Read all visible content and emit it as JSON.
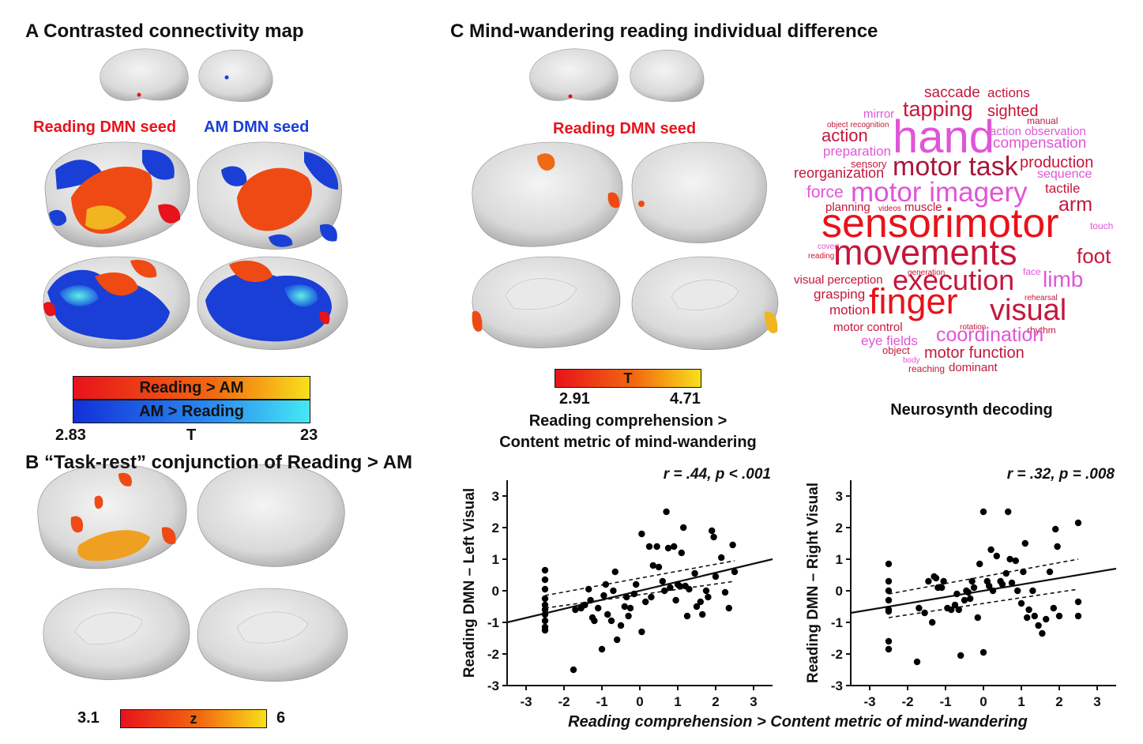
{
  "panelA": {
    "title": "A Contrasted connectivity map",
    "seed_left": "Reading DMN seed",
    "seed_right": "AM DMN seed",
    "bar1_label": "Reading > AM",
    "bar2_label": "AM > Reading",
    "scale_min": "2.83",
    "scale_mid": "T",
    "scale_max": "23"
  },
  "panelB": {
    "title": "B “Task-rest” conjunction of Reading > AM",
    "scale_min": "3.1",
    "scale_mid": "z",
    "scale_max": "6"
  },
  "panelC": {
    "title": "C Mind-wandering reading individual difference",
    "seed": "Reading DMN seed",
    "scale_mid": "T",
    "scale_min": "2.91",
    "scale_max": "4.71",
    "contrast_line1": "Reading comprehension >",
    "contrast_line2": "Content metric of mind-wandering",
    "decoding_label": "Neurosynth decoding",
    "shared_xlabel": "Reading comprehension > Content metric of mind-wandering"
  },
  "colors": {
    "red": "#e8121b",
    "blue": "#1a3fd6",
    "wc_dark": "#c4173a",
    "wc_mid": "#d43a8a",
    "wc_pink": "#e055d8"
  },
  "wordcloud": [
    {
      "text": "saccade",
      "color": "#c4173a"
    },
    {
      "text": "actions",
      "color": "#c4173a"
    },
    {
      "text": "tapping",
      "color": "#c4173a"
    },
    {
      "text": "sighted",
      "color": "#c4173a"
    },
    {
      "text": "mirror",
      "color": "#e055d8"
    },
    {
      "text": "manual",
      "color": "#c4173a"
    },
    {
      "text": "object recognition",
      "color": "#c4173a"
    },
    {
      "text": "hand",
      "color": "#e055d8"
    },
    {
      "text": "action observation",
      "color": "#e055d8"
    },
    {
      "text": "action",
      "color": "#c4173a"
    },
    {
      "text": "compensation",
      "color": "#e055d8"
    },
    {
      "text": "preparation",
      "color": "#e055d8"
    },
    {
      "text": "sensory",
      "color": "#c4173a"
    },
    {
      "text": "motor task",
      "color": "#a8173a"
    },
    {
      "text": "production",
      "color": "#c4173a"
    },
    {
      "text": "reorganization",
      "color": "#c4173a"
    },
    {
      "text": "sequence",
      "color": "#e055d8"
    },
    {
      "text": "force",
      "color": "#e055d8"
    },
    {
      "text": "motor imagery",
      "color": "#e055d8"
    },
    {
      "text": "tactile",
      "color": "#c4173a"
    },
    {
      "text": "planning",
      "color": "#c4173a"
    },
    {
      "text": "videos",
      "color": "#c4173a"
    },
    {
      "text": "muscle",
      "color": "#c4173a"
    },
    {
      "text": "arm",
      "color": "#c4173a"
    },
    {
      "text": "sensorimotor",
      "color": "#e8121b"
    },
    {
      "text": "touch",
      "color": "#e055d8"
    },
    {
      "text": "covert",
      "color": "#e055d8"
    },
    {
      "text": "reading",
      "color": "#c4173a"
    },
    {
      "text": "movements",
      "color": "#c4173a"
    },
    {
      "text": "foot",
      "color": "#c4173a"
    },
    {
      "text": "generation",
      "color": "#c4173a"
    },
    {
      "text": "face",
      "color": "#e055d8"
    },
    {
      "text": "visual perception",
      "color": "#c4173a"
    },
    {
      "text": "execution",
      "color": "#c4173a"
    },
    {
      "text": "limb",
      "color": "#e055d8"
    },
    {
      "text": "grasping",
      "color": "#c4173a"
    },
    {
      "text": "rehearsal",
      "color": "#c4173a"
    },
    {
      "text": "motion",
      "color": "#c4173a"
    },
    {
      "text": "finger",
      "color": "#e8121b"
    },
    {
      "text": "visual",
      "color": "#c4173a"
    },
    {
      "text": "motor control",
      "color": "#c4173a"
    },
    {
      "text": "rotation",
      "color": "#c4173a"
    },
    {
      "text": "rhythm",
      "color": "#c4173a"
    },
    {
      "text": "eye fields",
      "color": "#e055d8"
    },
    {
      "text": "coordination",
      "color": "#e055d8"
    },
    {
      "text": "object",
      "color": "#c4173a"
    },
    {
      "text": "body",
      "color": "#e055d8"
    },
    {
      "text": "motor function",
      "color": "#c4173a"
    },
    {
      "text": "reaching",
      "color": "#c4173a"
    },
    {
      "text": "dominant",
      "color": "#c4173a"
    }
  ],
  "chart_data": [
    {
      "type": "scatter",
      "title": "r = .44, p < .001",
      "xlabel": "",
      "ylabel": "Reading DMN – Left Visual",
      "xlim": [
        -3.5,
        3.5
      ],
      "ylim": [
        -3,
        3.5
      ],
      "xticks": [
        "-3",
        "-2",
        "-1",
        "0",
        "1",
        "2",
        "3"
      ],
      "yticks": [
        "-3",
        "-2",
        "-1",
        "0",
        "1",
        "2",
        "3"
      ],
      "points": [
        [
          -2.5,
          0.65
        ],
        [
          -2.5,
          0.35
        ],
        [
          -2.5,
          0.05
        ],
        [
          -2.5,
          -0.25
        ],
        [
          -2.5,
          -0.45
        ],
        [
          -2.5,
          -0.6
        ],
        [
          -2.5,
          -0.75
        ],
        [
          -2.5,
          -0.95
        ],
        [
          -2.5,
          -1.15
        ],
        [
          -2.5,
          -1.25
        ],
        [
          -1.75,
          -2.5
        ],
        [
          -1.7,
          -0.6
        ],
        [
          -1.55,
          -0.55
        ],
        [
          -1.45,
          -0.45
        ],
        [
          -1.35,
          0.05
        ],
        [
          -1.3,
          -0.3
        ],
        [
          -1.25,
          -0.85
        ],
        [
          -1.2,
          -0.95
        ],
        [
          -1.1,
          -0.55
        ],
        [
          -1.0,
          -1.85
        ],
        [
          -0.95,
          -0.15
        ],
        [
          -0.9,
          0.2
        ],
        [
          -0.85,
          -0.75
        ],
        [
          -0.75,
          -0.95
        ],
        [
          -0.7,
          0.0
        ],
        [
          -0.65,
          0.6
        ],
        [
          -0.6,
          -1.55
        ],
        [
          -0.5,
          -1.1
        ],
        [
          -0.4,
          -0.5
        ],
        [
          -0.35,
          -0.2
        ],
        [
          -0.3,
          -0.8
        ],
        [
          -0.25,
          -0.55
        ],
        [
          -0.15,
          -0.1
        ],
        [
          -0.1,
          0.2
        ],
        [
          0.05,
          1.8
        ],
        [
          0.05,
          -1.3
        ],
        [
          0.15,
          -0.35
        ],
        [
          0.25,
          1.4
        ],
        [
          0.3,
          -0.2
        ],
        [
          0.35,
          0.8
        ],
        [
          0.45,
          1.4
        ],
        [
          0.5,
          0.75
        ],
        [
          0.6,
          0.3
        ],
        [
          0.65,
          0.0
        ],
        [
          0.7,
          2.5
        ],
        [
          0.75,
          1.35
        ],
        [
          0.8,
          0.1
        ],
        [
          0.9,
          1.4
        ],
        [
          0.95,
          -0.3
        ],
        [
          1.0,
          0.2
        ],
        [
          1.05,
          0.15
        ],
        [
          1.1,
          1.2
        ],
        [
          1.15,
          2.0
        ],
        [
          1.2,
          0.15
        ],
        [
          1.25,
          -0.8
        ],
        [
          1.3,
          0.05
        ],
        [
          1.45,
          0.55
        ],
        [
          1.5,
          -0.5
        ],
        [
          1.6,
          -0.35
        ],
        [
          1.65,
          -0.75
        ],
        [
          1.75,
          0.0
        ],
        [
          1.8,
          -0.2
        ],
        [
          1.9,
          1.9
        ],
        [
          1.95,
          1.7
        ],
        [
          2.0,
          0.45
        ],
        [
          2.15,
          1.05
        ],
        [
          2.25,
          -0.05
        ],
        [
          2.35,
          -0.55
        ],
        [
          2.45,
          1.45
        ],
        [
          2.5,
          0.6
        ]
      ],
      "fit": {
        "x": [
          -3.5,
          3.5
        ],
        "y": [
          -1.0,
          1.0
        ]
      },
      "ci_upper": {
        "x": [
          -2.5,
          2.5
        ],
        "y": [
          -0.15,
          0.95
        ]
      },
      "ci_lower": {
        "x": [
          -2.5,
          2.5
        ],
        "y": [
          -0.55,
          0.3
        ]
      }
    },
    {
      "type": "scatter",
      "title": "r = .32, p = .008",
      "xlabel": "",
      "ylabel": "Reading DMN – Right Visual",
      "xlim": [
        -3.5,
        3.5
      ],
      "ylim": [
        -3,
        3.5
      ],
      "xticks": [
        "-3",
        "-2",
        "-1",
        "0",
        "1",
        "2",
        "3"
      ],
      "yticks": [
        "-3",
        "-2",
        "-1",
        "0",
        "1",
        "2",
        "3"
      ],
      "points": [
        [
          -2.5,
          0.85
        ],
        [
          -2.5,
          0.3
        ],
        [
          -2.5,
          0.0
        ],
        [
          -2.5,
          -0.3
        ],
        [
          -2.5,
          -0.6
        ],
        [
          -2.5,
          -0.65
        ],
        [
          -2.5,
          -1.6
        ],
        [
          -2.5,
          -1.85
        ],
        [
          -1.75,
          -2.25
        ],
        [
          -1.7,
          -0.55
        ],
        [
          -1.55,
          -0.7
        ],
        [
          -1.45,
          0.3
        ],
        [
          -1.35,
          -1.0
        ],
        [
          -1.3,
          0.45
        ],
        [
          -1.25,
          0.4
        ],
        [
          -1.2,
          0.1
        ],
        [
          -1.1,
          0.1
        ],
        [
          -1.05,
          0.3
        ],
        [
          -0.95,
          -0.55
        ],
        [
          -0.85,
          -0.6
        ],
        [
          -0.75,
          -0.45
        ],
        [
          -0.7,
          -0.1
        ],
        [
          -0.65,
          -0.6
        ],
        [
          -0.6,
          -2.05
        ],
        [
          -0.5,
          -0.3
        ],
        [
          -0.45,
          0.0
        ],
        [
          -0.4,
          -0.05
        ],
        [
          -0.35,
          -0.25
        ],
        [
          -0.3,
          0.3
        ],
        [
          -0.25,
          0.1
        ],
        [
          -0.15,
          -0.85
        ],
        [
          -0.1,
          0.85
        ],
        [
          0.0,
          2.5
        ],
        [
          0.0,
          -1.95
        ],
        [
          0.1,
          0.3
        ],
        [
          0.15,
          0.15
        ],
        [
          0.2,
          1.3
        ],
        [
          0.25,
          0.0
        ],
        [
          0.35,
          1.1
        ],
        [
          0.45,
          0.3
        ],
        [
          0.5,
          0.2
        ],
        [
          0.6,
          0.55
        ],
        [
          0.65,
          2.5
        ],
        [
          0.7,
          1.0
        ],
        [
          0.75,
          0.25
        ],
        [
          0.85,
          0.95
        ],
        [
          0.9,
          0.0
        ],
        [
          1.0,
          -0.4
        ],
        [
          1.05,
          0.6
        ],
        [
          1.1,
          1.5
        ],
        [
          1.15,
          -0.85
        ],
        [
          1.2,
          -0.6
        ],
        [
          1.3,
          0.0
        ],
        [
          1.35,
          -0.8
        ],
        [
          1.45,
          -1.1
        ],
        [
          1.55,
          -1.35
        ],
        [
          1.65,
          -0.9
        ],
        [
          1.75,
          0.6
        ],
        [
          1.85,
          -0.55
        ],
        [
          1.9,
          1.95
        ],
        [
          1.95,
          1.4
        ],
        [
          2.0,
          -0.8
        ],
        [
          2.5,
          2.15
        ],
        [
          2.5,
          -0.35
        ],
        [
          2.5,
          -0.8
        ]
      ],
      "fit": {
        "x": [
          -3.5,
          3.5
        ],
        "y": [
          -0.7,
          0.7
        ]
      },
      "ci_upper": {
        "x": [
          -2.5,
          2.5
        ],
        "y": [
          -0.1,
          1.0
        ]
      },
      "ci_lower": {
        "x": [
          -2.5,
          2.5
        ],
        "y": [
          -0.85,
          0.05
        ]
      }
    }
  ]
}
